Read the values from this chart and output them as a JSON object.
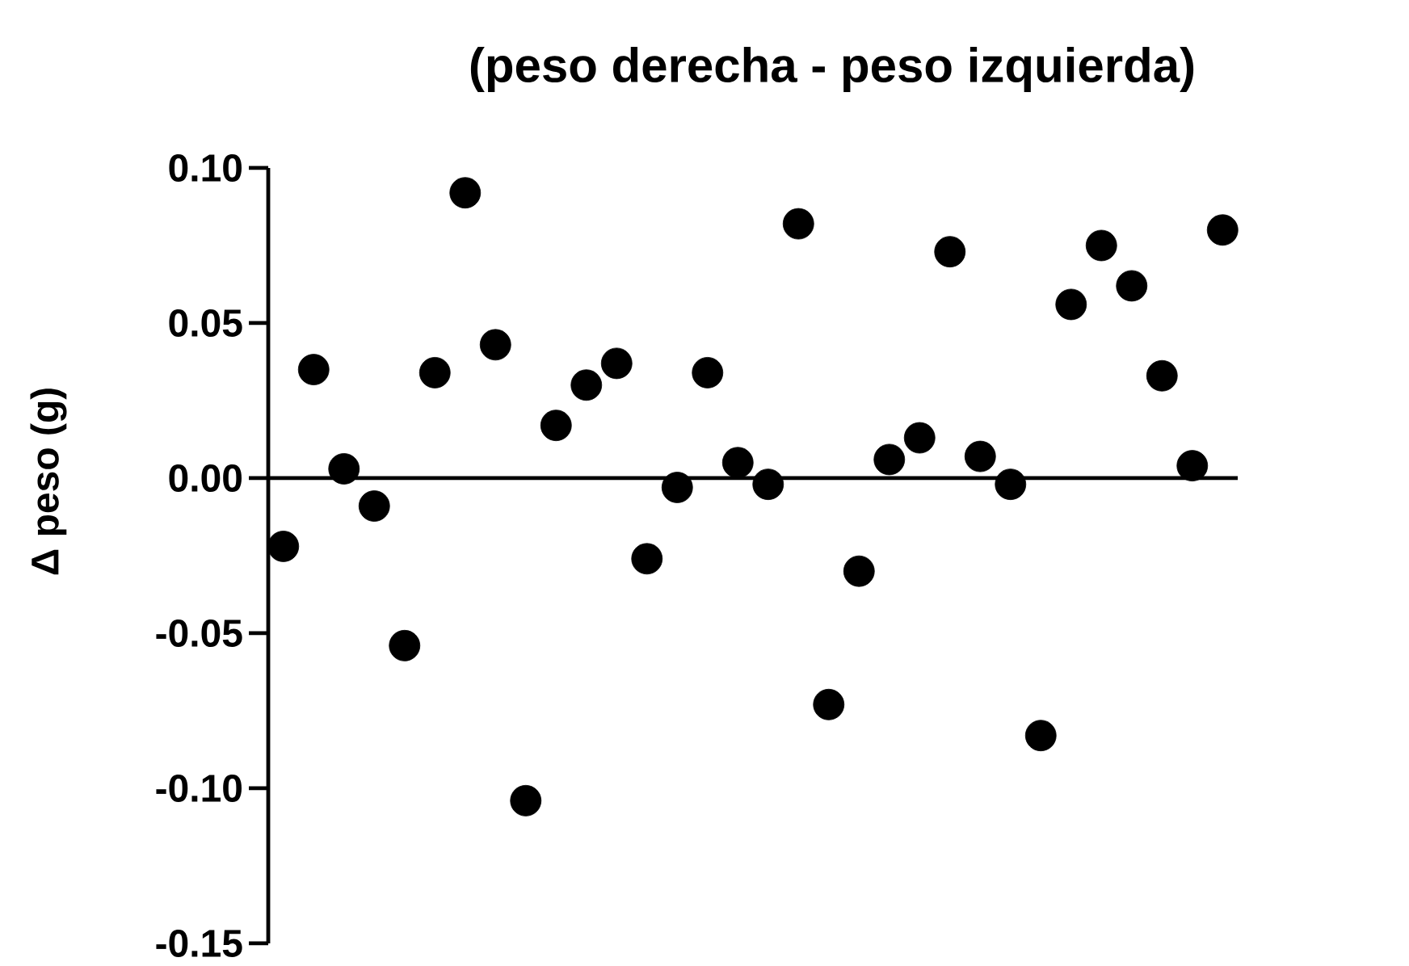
{
  "chart_data": {
    "type": "scatter",
    "title": "(peso derecha - peso izquierda)",
    "ylabel": "Δ peso (g)",
    "categories": [
      null,
      null,
      null,
      null,
      null,
      null,
      null,
      null,
      null,
      null,
      null,
      null,
      null,
      null,
      null,
      null,
      null,
      null,
      null,
      null,
      null,
      null,
      null,
      null,
      null,
      null,
      null,
      null,
      null,
      null,
      null,
      null
    ],
    "values": [
      -0.022,
      0.035,
      0.003,
      -0.009,
      -0.054,
      0.034,
      0.092,
      0.043,
      -0.104,
      0.017,
      0.03,
      0.037,
      -0.026,
      -0.003,
      0.034,
      0.005,
      -0.002,
      0.082,
      -0.073,
      -0.03,
      0.006,
      0.013,
      0.073,
      0.007,
      -0.002,
      -0.083,
      0.056,
      0.075,
      0.062,
      0.033,
      0.004,
      0.08
    ],
    "color": "#000000",
    "ylim": [
      -0.15,
      0.1
    ],
    "yticks": [
      {
        "value": -0.15,
        "label": "-0.15"
      },
      {
        "value": -0.1,
        "label": "-0.10"
      },
      {
        "value": -0.05,
        "label": "-0.05"
      },
      {
        "value": 0.0,
        "label": "0.00"
      },
      {
        "value": 0.05,
        "label": "0.05"
      },
      {
        "value": 0.1,
        "label": "0.10"
      }
    ],
    "ref_lines": [
      {
        "axis": "y",
        "value": 0,
        "color": "#000000"
      }
    ],
    "tick_labels": "y",
    "grid": false,
    "legend": false
  }
}
